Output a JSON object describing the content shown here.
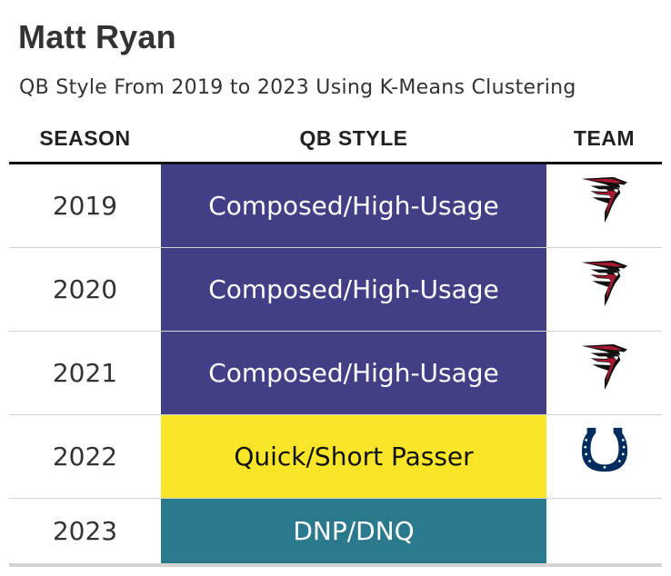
{
  "title": "Matt Ryan",
  "subtitle": "QB Style From 2019 to 2023 Using K-Means Clustering",
  "columns": {
    "season": "SEASON",
    "style": "QB STYLE",
    "team": "TEAM"
  },
  "colors": {
    "composed_high_usage": "#433f86",
    "quick_short_passer": "#f9e527",
    "dnp_dnq": "#2b798c"
  },
  "rows": [
    {
      "season": "2019",
      "style": "Composed/High-Usage",
      "team_icon": "falcons-logo-icon"
    },
    {
      "season": "2020",
      "style": "Composed/High-Usage",
      "team_icon": "falcons-logo-icon"
    },
    {
      "season": "2021",
      "style": "Composed/High-Usage",
      "team_icon": "falcons-logo-icon"
    },
    {
      "season": "2022",
      "style": "Quick/Short Passer",
      "team_icon": "colts-horseshoe-icon"
    },
    {
      "season": "2023",
      "style": "DNP/DNQ",
      "team_icon": ""
    }
  ]
}
